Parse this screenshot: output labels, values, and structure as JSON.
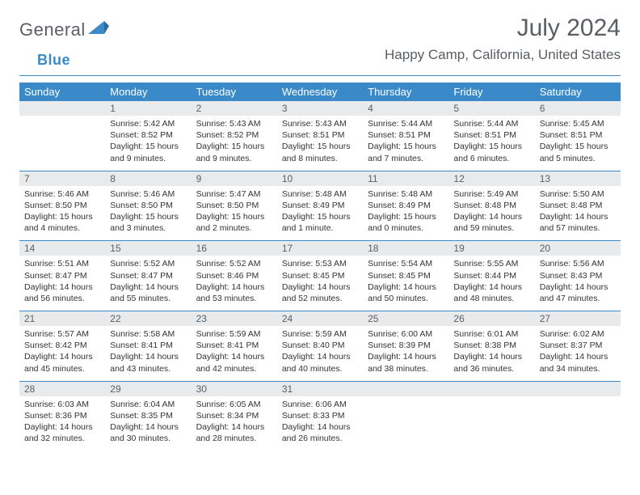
{
  "logo": {
    "text1": "General",
    "text2": "Blue",
    "flag_fill": "#3a8ac9"
  },
  "title": "July 2024",
  "location": "Happy Camp, California, United States",
  "colors": {
    "accent": "#3a8ac9",
    "header_text": "#585e64",
    "daynum_bg": "#e8eaec"
  },
  "day_headers": [
    "Sunday",
    "Monday",
    "Tuesday",
    "Wednesday",
    "Thursday",
    "Friday",
    "Saturday"
  ],
  "weeks": [
    [
      null,
      {
        "n": "1",
        "sr": "5:42 AM",
        "ss": "8:52 PM",
        "dl": "15 hours and 9 minutes."
      },
      {
        "n": "2",
        "sr": "5:43 AM",
        "ss": "8:52 PM",
        "dl": "15 hours and 9 minutes."
      },
      {
        "n": "3",
        "sr": "5:43 AM",
        "ss": "8:51 PM",
        "dl": "15 hours and 8 minutes."
      },
      {
        "n": "4",
        "sr": "5:44 AM",
        "ss": "8:51 PM",
        "dl": "15 hours and 7 minutes."
      },
      {
        "n": "5",
        "sr": "5:44 AM",
        "ss": "8:51 PM",
        "dl": "15 hours and 6 minutes."
      },
      {
        "n": "6",
        "sr": "5:45 AM",
        "ss": "8:51 PM",
        "dl": "15 hours and 5 minutes."
      }
    ],
    [
      {
        "n": "7",
        "sr": "5:46 AM",
        "ss": "8:50 PM",
        "dl": "15 hours and 4 minutes."
      },
      {
        "n": "8",
        "sr": "5:46 AM",
        "ss": "8:50 PM",
        "dl": "15 hours and 3 minutes."
      },
      {
        "n": "9",
        "sr": "5:47 AM",
        "ss": "8:50 PM",
        "dl": "15 hours and 2 minutes."
      },
      {
        "n": "10",
        "sr": "5:48 AM",
        "ss": "8:49 PM",
        "dl": "15 hours and 1 minute."
      },
      {
        "n": "11",
        "sr": "5:48 AM",
        "ss": "8:49 PM",
        "dl": "15 hours and 0 minutes."
      },
      {
        "n": "12",
        "sr": "5:49 AM",
        "ss": "8:48 PM",
        "dl": "14 hours and 59 minutes."
      },
      {
        "n": "13",
        "sr": "5:50 AM",
        "ss": "8:48 PM",
        "dl": "14 hours and 57 minutes."
      }
    ],
    [
      {
        "n": "14",
        "sr": "5:51 AM",
        "ss": "8:47 PM",
        "dl": "14 hours and 56 minutes."
      },
      {
        "n": "15",
        "sr": "5:52 AM",
        "ss": "8:47 PM",
        "dl": "14 hours and 55 minutes."
      },
      {
        "n": "16",
        "sr": "5:52 AM",
        "ss": "8:46 PM",
        "dl": "14 hours and 53 minutes."
      },
      {
        "n": "17",
        "sr": "5:53 AM",
        "ss": "8:45 PM",
        "dl": "14 hours and 52 minutes."
      },
      {
        "n": "18",
        "sr": "5:54 AM",
        "ss": "8:45 PM",
        "dl": "14 hours and 50 minutes."
      },
      {
        "n": "19",
        "sr": "5:55 AM",
        "ss": "8:44 PM",
        "dl": "14 hours and 48 minutes."
      },
      {
        "n": "20",
        "sr": "5:56 AM",
        "ss": "8:43 PM",
        "dl": "14 hours and 47 minutes."
      }
    ],
    [
      {
        "n": "21",
        "sr": "5:57 AM",
        "ss": "8:42 PM",
        "dl": "14 hours and 45 minutes."
      },
      {
        "n": "22",
        "sr": "5:58 AM",
        "ss": "8:41 PM",
        "dl": "14 hours and 43 minutes."
      },
      {
        "n": "23",
        "sr": "5:59 AM",
        "ss": "8:41 PM",
        "dl": "14 hours and 42 minutes."
      },
      {
        "n": "24",
        "sr": "5:59 AM",
        "ss": "8:40 PM",
        "dl": "14 hours and 40 minutes."
      },
      {
        "n": "25",
        "sr": "6:00 AM",
        "ss": "8:39 PM",
        "dl": "14 hours and 38 minutes."
      },
      {
        "n": "26",
        "sr": "6:01 AM",
        "ss": "8:38 PM",
        "dl": "14 hours and 36 minutes."
      },
      {
        "n": "27",
        "sr": "6:02 AM",
        "ss": "8:37 PM",
        "dl": "14 hours and 34 minutes."
      }
    ],
    [
      {
        "n": "28",
        "sr": "6:03 AM",
        "ss": "8:36 PM",
        "dl": "14 hours and 32 minutes."
      },
      {
        "n": "29",
        "sr": "6:04 AM",
        "ss": "8:35 PM",
        "dl": "14 hours and 30 minutes."
      },
      {
        "n": "30",
        "sr": "6:05 AM",
        "ss": "8:34 PM",
        "dl": "14 hours and 28 minutes."
      },
      {
        "n": "31",
        "sr": "6:06 AM",
        "ss": "8:33 PM",
        "dl": "14 hours and 26 minutes."
      },
      null,
      null,
      null
    ]
  ],
  "labels": {
    "sunrise": "Sunrise: ",
    "sunset": "Sunset: ",
    "daylight": "Daylight: "
  }
}
